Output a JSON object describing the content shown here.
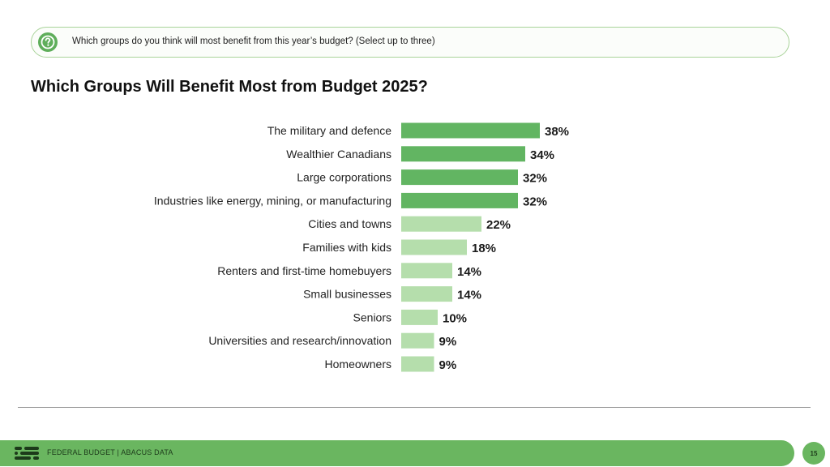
{
  "question": {
    "icon": "question-icon",
    "text": "Which groups do you think will most benefit from this year’s budget? (Select up to three)"
  },
  "footer": {
    "logo_icon": "abacus-logo-icon",
    "text": "FEDERAL BUDGET | ABACUS DATA",
    "page_number": "15"
  },
  "colors": {
    "dark_bar": "#62b562",
    "light_bar": "#b5deac",
    "accent": "#6ab660"
  },
  "chart_data": {
    "type": "bar",
    "orientation": "horizontal",
    "title": "Which Groups Will Benefit Most from Budget 2025?",
    "categories": [
      "The military and defence",
      "Wealthier Canadians",
      "Large corporations",
      "Industries like energy, mining, or manufacturing",
      "Cities and towns",
      "Families with kids",
      "Renters and first-time homebuyers",
      "Small businesses",
      "Seniors",
      "Universities and research/innovation",
      "Homeowners"
    ],
    "values": [
      38,
      34,
      32,
      32,
      22,
      18,
      14,
      14,
      10,
      9,
      9
    ],
    "value_labels": [
      "38%",
      "34%",
      "32%",
      "32%",
      "22%",
      "18%",
      "14%",
      "14%",
      "10%",
      "9%",
      "9%"
    ],
    "highlighted_top": 4,
    "grid": false,
    "legend": "none"
  }
}
